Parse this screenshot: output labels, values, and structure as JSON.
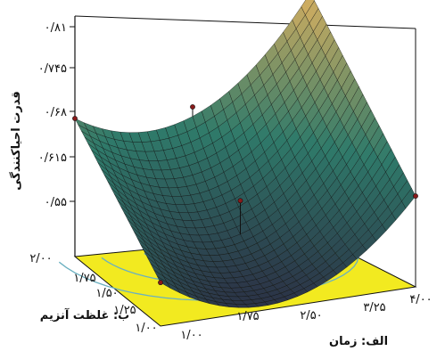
{
  "chart_data": {
    "type": "surface",
    "zlabel": "قدرت احیاکنندگی",
    "xlabel": "الف: زمان",
    "ylabel": "ب: غلظت آنزیم",
    "z_ticks": [
      "۰/۵۵",
      "۰/۶۱۵",
      "۰/۶۸",
      "۰/۷۴۵",
      "۰/۸۱"
    ],
    "z_values": [
      0.55,
      0.615,
      0.68,
      0.745,
      0.81
    ],
    "zlim": [
      0.55,
      0.81
    ],
    "x_ticks": [
      "۱/۰۰",
      "۱/۷۵",
      "۲/۵۰",
      "۳/۲۵",
      "۴/۰۰"
    ],
    "x_values": [
      1.0,
      1.75,
      2.5,
      3.25,
      4.0
    ],
    "y_ticks": [
      "۱/۰۰",
      "۱/۲۵",
      "۱/۵۰",
      "۱/۷۵",
      "۲/۰۰"
    ],
    "y_values": [
      1.0,
      1.25,
      1.5,
      1.75,
      2.0
    ],
    "corner_values": {
      "x1_y1": 0.56,
      "x4_y1": 0.62,
      "x1_y2": 0.68,
      "x4_y2": 0.81
    },
    "design_points": [
      {
        "x": 1.0,
        "y": 2.0,
        "z": 0.68
      },
      {
        "x": 4.0,
        "y": 2.0,
        "z": 0.81
      },
      {
        "x": 4.0,
        "y": 1.0,
        "z": 0.62
      },
      {
        "x": 1.0,
        "y": 1.0,
        "z": 0.56
      },
      {
        "x": 2.5,
        "y": 2.0,
        "z": 0.68
      },
      {
        "x": 2.5,
        "y": 1.5,
        "z": 0.6
      }
    ],
    "colors": {
      "surface_low": "#2a1a3a",
      "surface_mid": "#2f7a6a",
      "surface_high": "#d9b060",
      "floor_fill": "#f2ea20",
      "contour": "#6ab0c0"
    },
    "grid": false
  }
}
